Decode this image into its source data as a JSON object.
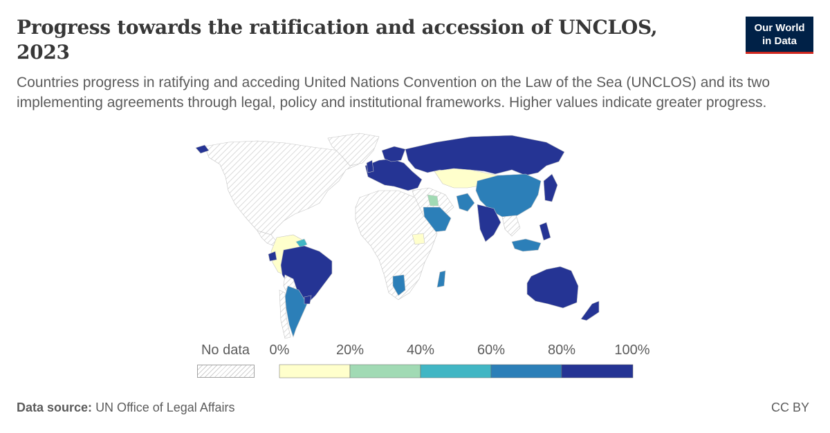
{
  "title": "Progress towards the ratification and accession of UNCLOS, 2023",
  "subtitle": "Countries progress in ratifying and acceding United Nations Convention on the Law of the Sea (UNCLOS) and its two implementing agreements through legal, policy and institutional frameworks. Higher values indicate greater progress.",
  "logo": {
    "line1": "Our World",
    "line2": "in Data",
    "bg": "#002147",
    "accent": "#ce261e"
  },
  "legend": {
    "no_data_label": "No data",
    "ticks": [
      "0%",
      "20%",
      "40%",
      "60%",
      "80%",
      "100%"
    ],
    "colors": [
      "#ffffcc",
      "#a1dab4",
      "#41b6c4",
      "#2c7fb8",
      "#253494"
    ]
  },
  "footer": {
    "source_label": "Data source:",
    "source_value": "UN Office of Legal Affairs",
    "license": "CC BY"
  },
  "chart_data": {
    "type": "choropleth",
    "year": 2023,
    "scale_bins": [
      0,
      20,
      40,
      60,
      80,
      100
    ],
    "unit": "%",
    "regions": [
      {
        "name": "Russia",
        "bin": "80-100%"
      },
      {
        "name": "Europe (most countries)",
        "bin": "80-100%"
      },
      {
        "name": "Kazakhstan",
        "bin": "0-20%"
      },
      {
        "name": "Mongolia",
        "bin": "0-20%"
      },
      {
        "name": "China",
        "bin": "60-80%"
      },
      {
        "name": "Japan",
        "bin": "80-100%"
      },
      {
        "name": "Pakistan",
        "bin": "60-80%"
      },
      {
        "name": "India",
        "bin": "80-100%"
      },
      {
        "name": "Saudi Arabia",
        "bin": "60-80%"
      },
      {
        "name": "Iraq",
        "bin": "20-40%"
      },
      {
        "name": "Philippines",
        "bin": "80-100%"
      },
      {
        "name": "Indonesia",
        "bin": "60-80%"
      },
      {
        "name": "Australia",
        "bin": "80-100%"
      },
      {
        "name": "New Zealand",
        "bin": "80-100%"
      },
      {
        "name": "Brazil",
        "bin": "80-100%"
      },
      {
        "name": "Colombia",
        "bin": "0-20%"
      },
      {
        "name": "Venezuela",
        "bin": "0-20%"
      },
      {
        "name": "Peru",
        "bin": "0-20%"
      },
      {
        "name": "Ecuador",
        "bin": "80-100%"
      },
      {
        "name": "Argentina",
        "bin": "60-80%"
      },
      {
        "name": "Uruguay",
        "bin": "80-100%"
      },
      {
        "name": "South Sudan",
        "bin": "0-20%"
      },
      {
        "name": "Namibia",
        "bin": "60-80%"
      },
      {
        "name": "Madagascar",
        "bin": "60-80%"
      },
      {
        "name": "Canada",
        "bin": "No data"
      },
      {
        "name": "United States",
        "bin": "No data"
      },
      {
        "name": "Africa (most countries)",
        "bin": "No data"
      }
    ]
  }
}
